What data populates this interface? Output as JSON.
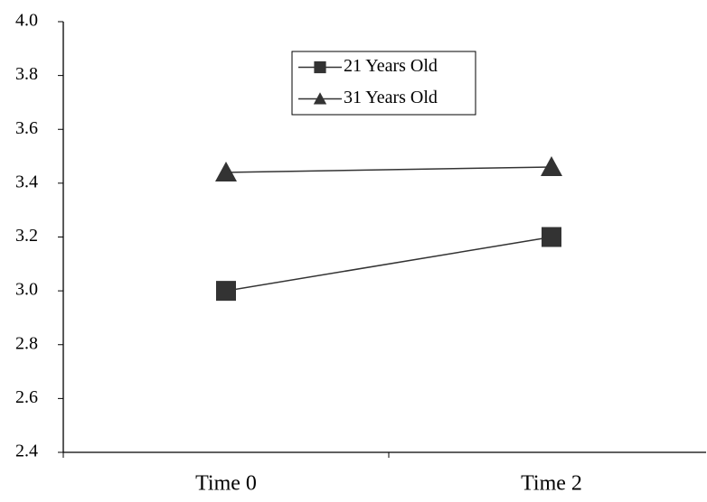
{
  "chart_data": {
    "type": "line",
    "categories": [
      "Time 0",
      "Time 2"
    ],
    "series": [
      {
        "name": "21 Years Old",
        "color": "#333333",
        "marker": "square",
        "values": [
          3.0,
          3.2
        ]
      },
      {
        "name": "31 Years Old",
        "color": "#333333",
        "marker": "triangle",
        "values": [
          3.44,
          3.46
        ]
      }
    ],
    "ylim": [
      2.4,
      4.0
    ],
    "yticks": [
      {
        "value": 2.4,
        "label": "2.4"
      },
      {
        "value": 2.6,
        "label": "2.6"
      },
      {
        "value": 2.8,
        "label": "2.8"
      },
      {
        "value": 3.0,
        "label": "3.0"
      },
      {
        "value": 3.2,
        "label": "3.2"
      },
      {
        "value": 3.4,
        "label": "3.4"
      },
      {
        "value": 3.6,
        "label": "3.6"
      },
      {
        "value": 3.8,
        "label": "3.8"
      },
      {
        "value": 4.0,
        "label": "4.0"
      }
    ],
    "legend": "top-center"
  }
}
